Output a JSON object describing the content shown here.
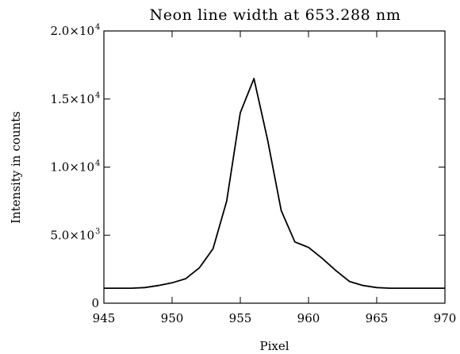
{
  "chart_data": {
    "type": "line",
    "title": "Neon line width at 653.288 nm",
    "xlabel": "Pixel",
    "ylabel": "Intensity in counts",
    "xlim": [
      945,
      970
    ],
    "ylim": [
      0,
      20000
    ],
    "grid": false,
    "x_ticks": [
      {
        "value": 945,
        "label": "945"
      },
      {
        "value": 950,
        "label": "950"
      },
      {
        "value": 955,
        "label": "955"
      },
      {
        "value": 960,
        "label": "960"
      },
      {
        "value": 965,
        "label": "965"
      },
      {
        "value": 970,
        "label": "970"
      }
    ],
    "y_ticks": [
      {
        "value": 0,
        "mantissa": "0",
        "exponent": ""
      },
      {
        "value": 5000,
        "mantissa": "5.0×10",
        "exponent": "3"
      },
      {
        "value": 10000,
        "mantissa": "1.0×10",
        "exponent": "4"
      },
      {
        "value": 15000,
        "mantissa": "1.5×10",
        "exponent": "4"
      },
      {
        "value": 20000,
        "mantissa": "2.0×10",
        "exponent": "4"
      }
    ],
    "series": [
      {
        "x": [
          945,
          946,
          947,
          948,
          949,
          950,
          951,
          952,
          953,
          954,
          955,
          956,
          957,
          958,
          959,
          960,
          961,
          962,
          963,
          964,
          965,
          966,
          967,
          968,
          969,
          970
        ],
        "y": [
          1100,
          1100,
          1100,
          1150,
          1300,
          1500,
          1800,
          2600,
          4000,
          7500,
          14000,
          16500,
          12000,
          6800,
          4500,
          4100,
          3300,
          2400,
          1600,
          1300,
          1150,
          1100,
          1100,
          1100,
          1100,
          1100
        ]
      }
    ]
  }
}
